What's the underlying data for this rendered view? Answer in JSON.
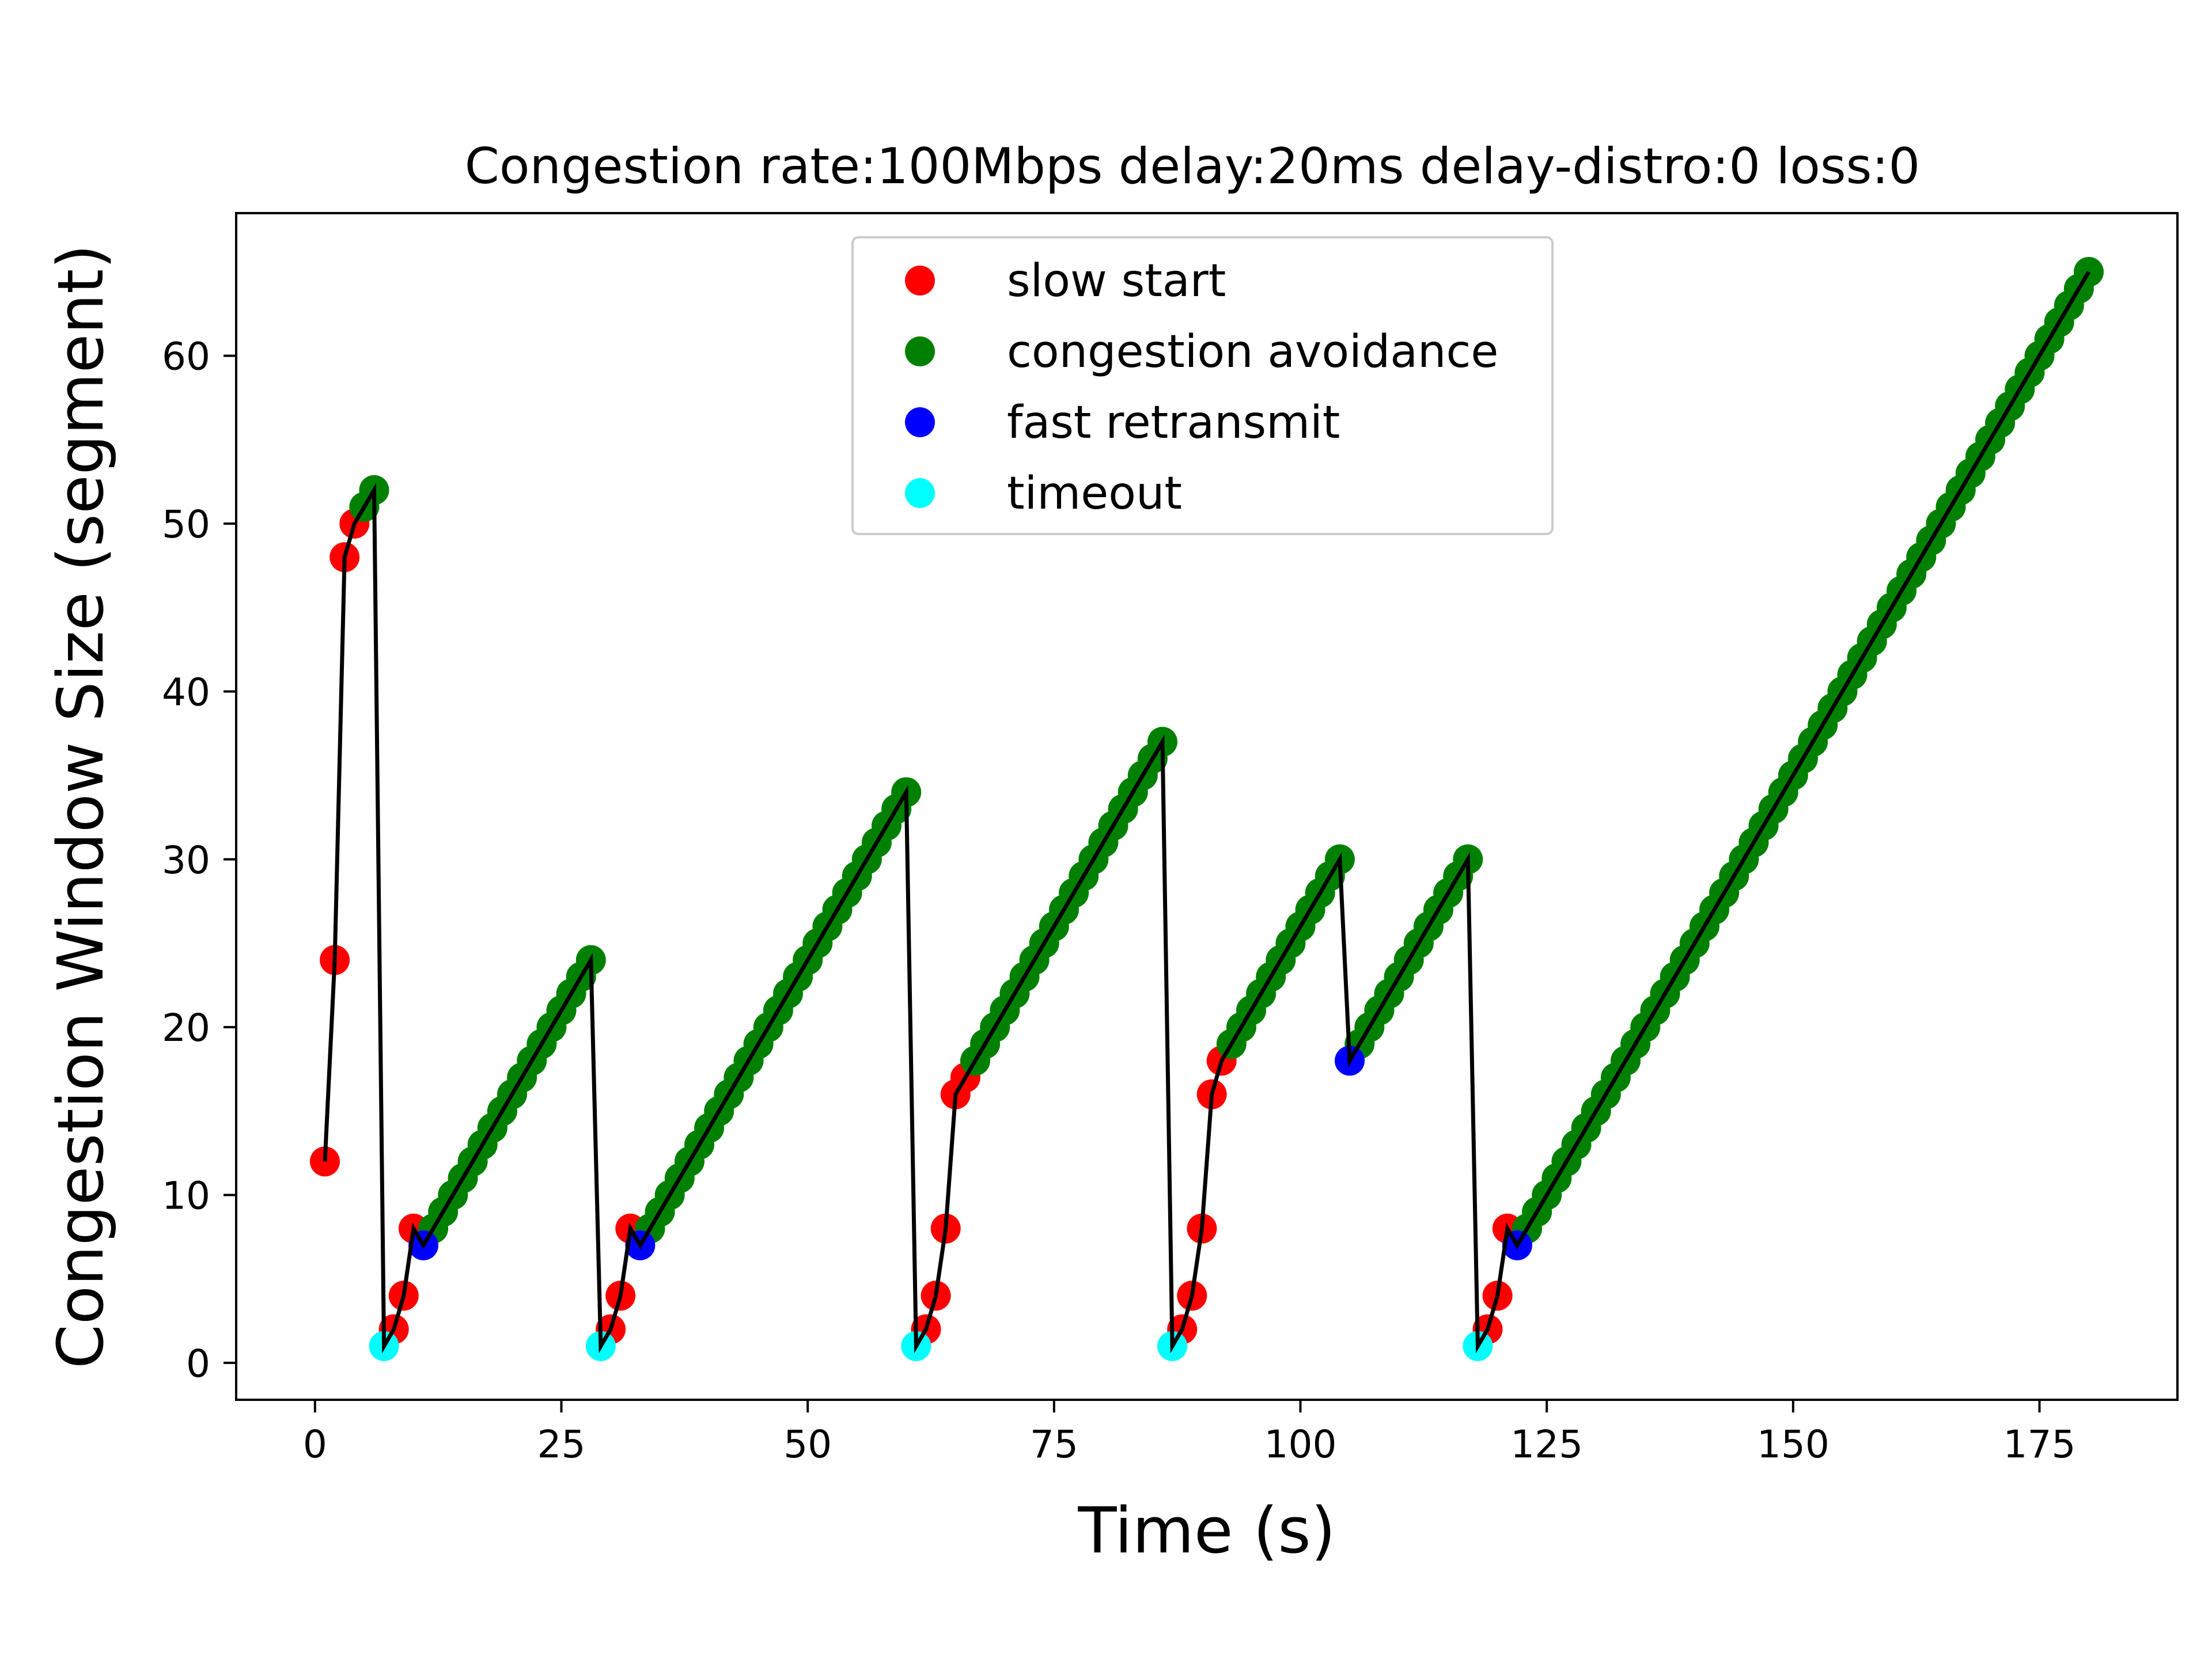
{
  "chart_data": {
    "type": "scatter",
    "title": "Congestion  rate:100Mbps delay:20ms delay-distro:0 loss:0",
    "xlabel": "Time (s)",
    "ylabel": "Congestion Window Size (segment)",
    "xlim": [
      -8,
      189
    ],
    "ylim": [
      -2.2,
      68.5
    ],
    "xticks": [
      0,
      25,
      50,
      75,
      100,
      125,
      150,
      175
    ],
    "yticks": [
      0,
      10,
      20,
      30,
      40,
      50,
      60
    ],
    "grid": false,
    "legend_position": "top-center",
    "line": {
      "color": "#000000",
      "description": "cwnd trace"
    },
    "series": [
      {
        "name": "slow start",
        "color": "#ff0000",
        "points": [
          [
            1,
            12
          ],
          [
            2,
            24
          ],
          [
            3,
            48
          ],
          [
            4,
            50
          ],
          [
            8,
            2
          ],
          [
            9,
            4
          ],
          [
            10,
            8
          ],
          [
            30,
            2
          ],
          [
            31,
            4
          ],
          [
            32,
            8
          ],
          [
            62,
            2
          ],
          [
            63,
            4
          ],
          [
            64,
            8
          ],
          [
            65,
            16
          ],
          [
            66,
            17
          ],
          [
            88,
            2
          ],
          [
            89,
            4
          ],
          [
            90,
            8
          ],
          [
            91,
            16
          ],
          [
            92,
            18
          ],
          [
            119,
            2
          ],
          [
            120,
            4
          ],
          [
            121,
            8
          ]
        ]
      },
      {
        "name": "congestion avoidance",
        "color": "#008000",
        "segments": [
          {
            "x_start": 5,
            "y_start": 51,
            "x_end": 6,
            "y_end": 52
          },
          {
            "x_start": 12,
            "y_start": 8,
            "x_end": 28,
            "y_end": 24
          },
          {
            "x_start": 34,
            "y_start": 8,
            "x_end": 60,
            "y_end": 34
          },
          {
            "x_start": 67,
            "y_start": 18,
            "x_end": 86,
            "y_end": 37
          },
          {
            "x_start": 93,
            "y_start": 19,
            "x_end": 104,
            "y_end": 30
          },
          {
            "x_start": 106,
            "y_start": 19,
            "x_end": 117,
            "y_end": 30
          },
          {
            "x_start": 123,
            "y_start": 8,
            "x_end": 180,
            "y_end": 65
          }
        ]
      },
      {
        "name": "fast retransmit",
        "color": "#0000ff",
        "points": [
          [
            11,
            7
          ],
          [
            33,
            7
          ],
          [
            105,
            18
          ],
          [
            122,
            7
          ]
        ]
      },
      {
        "name": "timeout",
        "color": "#00ffff",
        "points": [
          [
            7,
            1
          ],
          [
            29,
            1
          ],
          [
            61,
            1
          ],
          [
            87,
            1
          ],
          [
            118,
            1
          ]
        ]
      }
    ]
  }
}
